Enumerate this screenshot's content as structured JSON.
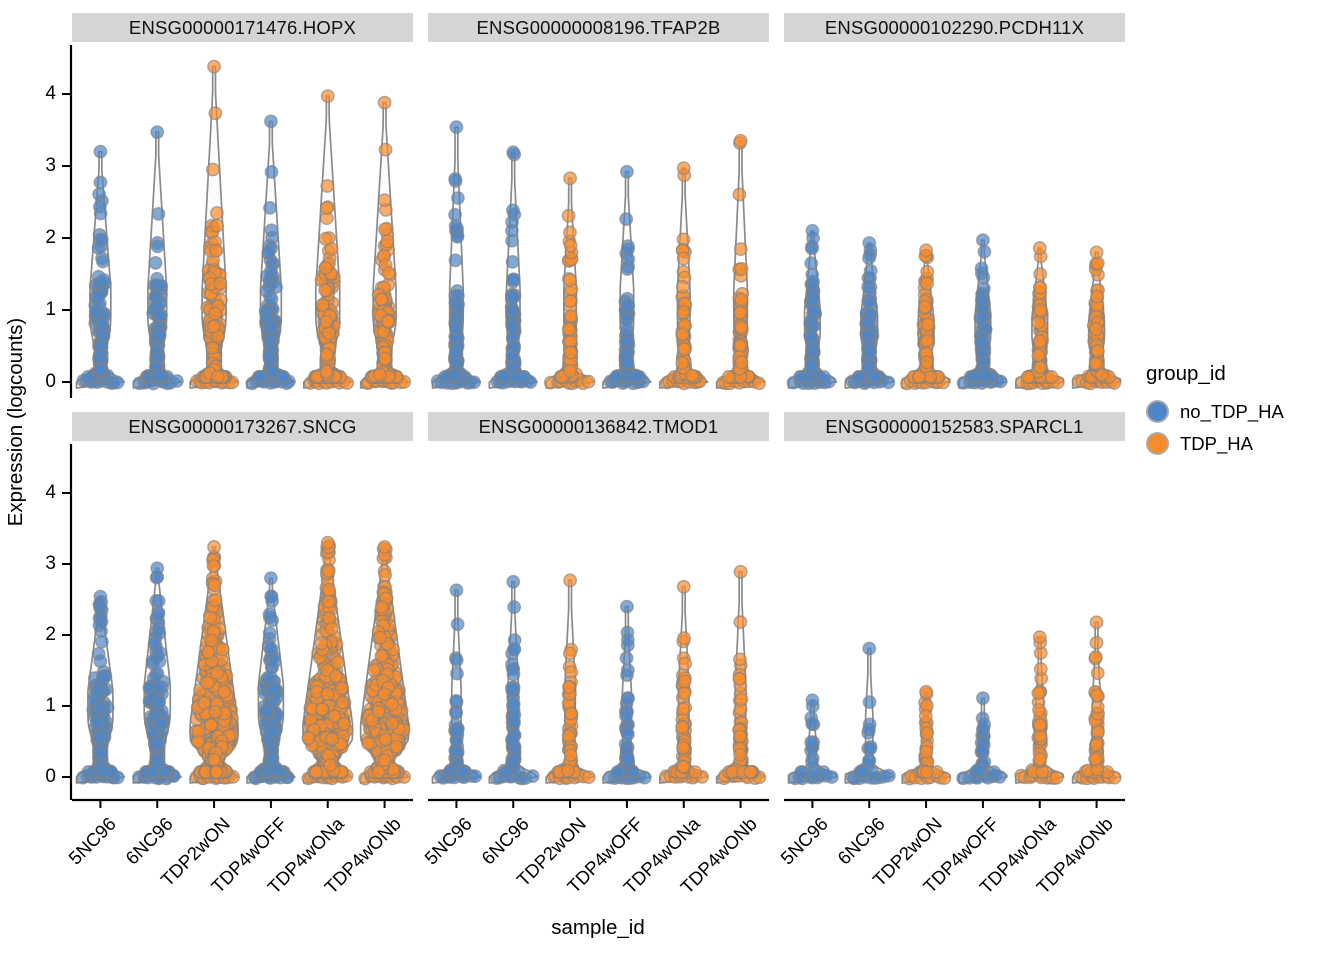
{
  "axes": {
    "y": {
      "label": "Expression (logcounts)",
      "ticks": [
        0,
        1,
        2,
        3,
        4
      ]
    },
    "x": {
      "label": "sample_id",
      "categories": [
        "5NC96",
        "6NC96",
        "TDP2wON",
        "TDP4wOFF",
        "TDP4wONa",
        "TDP4wONb"
      ]
    }
  },
  "legend": {
    "title": "group_id",
    "items": [
      {
        "label": "no_TDP_HA",
        "color": "#4F86C6"
      },
      {
        "label": "TDP_HA",
        "color": "#F88B2C"
      }
    ]
  },
  "style": {
    "point_colors": {
      "no_TDP_HA": "#4F86C6",
      "TDP_HA": "#F88B2C"
    },
    "point_opacity": 0.7,
    "point_stroke": "rgba(130,130,130,0.65)",
    "violin_stroke": "#8A8A8A",
    "violin_fill": "rgba(250,250,250,0.5)",
    "strip_bg": "#D5D5D5",
    "axis_color": "#000000"
  },
  "chart_data": {
    "type": "violin",
    "subtype": "violin-with-jittered-points",
    "facet_by": "gene_id",
    "x": "sample_id",
    "y": "Expression (logcounts)",
    "ylim": [
      0,
      4.4
    ],
    "legend_position": "right",
    "grid": false,
    "groups": {
      "5NC96": "no_TDP_HA",
      "6NC96": "no_TDP_HA",
      "TDP2wON": "TDP_HA",
      "TDP4wOFF": "no_TDP_HA",
      "TDP4wONa": "TDP_HA",
      "TDP4wONb": "TDP_HA"
    },
    "facets": [
      {
        "title": "ENSG00000171476.HOPX",
        "violins": [
          {
            "sample": "5NC96",
            "group": "no_TDP_HA",
            "max": 3.2,
            "n": 120,
            "zeros": 10,
            "bulge": 0.4
          },
          {
            "sample": "6NC96",
            "group": "no_TDP_HA",
            "max": 3.47,
            "n": 110,
            "zeros": 10,
            "bulge": 0.36
          },
          {
            "sample": "TDP2wON",
            "group": "TDP_HA",
            "max": 4.38,
            "n": 210,
            "zeros": 11,
            "bulge": 0.46
          },
          {
            "sample": "TDP4wOFF",
            "group": "no_TDP_HA",
            "max": 3.62,
            "n": 130,
            "zeros": 10,
            "bulge": 0.4
          },
          {
            "sample": "TDP4wONa",
            "group": "TDP_HA",
            "max": 3.97,
            "n": 205,
            "zeros": 11,
            "bulge": 0.46
          },
          {
            "sample": "TDP4wONb",
            "group": "TDP_HA",
            "max": 3.88,
            "n": 195,
            "zeros": 11,
            "bulge": 0.44
          }
        ]
      },
      {
        "title": "ENSG00000008196.TFAP2B",
        "violins": [
          {
            "sample": "5NC96",
            "group": "no_TDP_HA",
            "max": 3.54,
            "n": 85,
            "zeros": 10,
            "bulge": 0.26
          },
          {
            "sample": "6NC96",
            "group": "no_TDP_HA",
            "max": 3.19,
            "n": 75,
            "zeros": 10,
            "bulge": 0.26
          },
          {
            "sample": "TDP2wON",
            "group": "TDP_HA",
            "max": 2.83,
            "n": 70,
            "zeros": 10,
            "bulge": 0.24
          },
          {
            "sample": "TDP4wOFF",
            "group": "no_TDP_HA",
            "max": 2.92,
            "n": 80,
            "zeros": 10,
            "bulge": 0.26
          },
          {
            "sample": "TDP4wONa",
            "group": "TDP_HA",
            "max": 2.97,
            "n": 70,
            "zeros": 10,
            "bulge": 0.24
          },
          {
            "sample": "TDP4wONb",
            "group": "TDP_HA",
            "max": 3.35,
            "n": 85,
            "zeros": 10,
            "bulge": 0.26
          }
        ]
      },
      {
        "title": "ENSG00000102290.PCDH11X",
        "violins": [
          {
            "sample": "5NC96",
            "group": "no_TDP_HA",
            "max": 2.1,
            "n": 95,
            "zeros": 10,
            "bulge": 0.3
          },
          {
            "sample": "6NC96",
            "group": "no_TDP_HA",
            "max": 1.93,
            "n": 90,
            "zeros": 10,
            "bulge": 0.32
          },
          {
            "sample": "TDP2wON",
            "group": "TDP_HA",
            "max": 1.83,
            "n": 90,
            "zeros": 10,
            "bulge": 0.3
          },
          {
            "sample": "TDP4wOFF",
            "group": "no_TDP_HA",
            "max": 1.97,
            "n": 95,
            "zeros": 10,
            "bulge": 0.3
          },
          {
            "sample": "TDP4wONa",
            "group": "TDP_HA",
            "max": 1.86,
            "n": 90,
            "zeros": 10,
            "bulge": 0.3
          },
          {
            "sample": "TDP4wONb",
            "group": "TDP_HA",
            "max": 1.8,
            "n": 85,
            "zeros": 10,
            "bulge": 0.3
          }
        ]
      },
      {
        "title": "ENSG00000173267.SNCG",
        "violins": [
          {
            "sample": "5NC96",
            "group": "no_TDP_HA",
            "max": 2.54,
            "n": 170,
            "zeros": 11,
            "bulge": 0.48
          },
          {
            "sample": "6NC96",
            "group": "no_TDP_HA",
            "max": 2.94,
            "n": 210,
            "zeros": 11,
            "bulge": 0.5
          },
          {
            "sample": "TDP2wON",
            "group": "TDP_HA",
            "max": 3.24,
            "n": 400,
            "zeros": 13,
            "bulge": 0.92
          },
          {
            "sample": "TDP4wOFF",
            "group": "no_TDP_HA",
            "max": 2.8,
            "n": 190,
            "zeros": 11,
            "bulge": 0.48
          },
          {
            "sample": "TDP4wONa",
            "group": "TDP_HA",
            "max": 3.3,
            "n": 420,
            "zeros": 13,
            "bulge": 0.95
          },
          {
            "sample": "TDP4wONb",
            "group": "TDP_HA",
            "max": 3.24,
            "n": 400,
            "zeros": 13,
            "bulge": 0.92
          }
        ]
      },
      {
        "title": "ENSG00000136842.TMOD1",
        "violins": [
          {
            "sample": "5NC96",
            "group": "no_TDP_HA",
            "max": 2.63,
            "n": 45,
            "zeros": 9,
            "bulge": 0.18
          },
          {
            "sample": "6NC96",
            "group": "no_TDP_HA",
            "max": 2.75,
            "n": 55,
            "zeros": 9,
            "bulge": 0.2
          },
          {
            "sample": "TDP2wON",
            "group": "TDP_HA",
            "max": 2.77,
            "n": 55,
            "zeros": 9,
            "bulge": 0.2
          },
          {
            "sample": "TDP4wOFF",
            "group": "no_TDP_HA",
            "max": 2.4,
            "n": 45,
            "zeros": 9,
            "bulge": 0.18
          },
          {
            "sample": "TDP4wONa",
            "group": "TDP_HA",
            "max": 2.68,
            "n": 60,
            "zeros": 9,
            "bulge": 0.2
          },
          {
            "sample": "TDP4wONb",
            "group": "TDP_HA",
            "max": 2.89,
            "n": 65,
            "zeros": 9,
            "bulge": 0.2
          }
        ]
      },
      {
        "title": "ENSG00000152583.SPARCL1",
        "violins": [
          {
            "sample": "5NC96",
            "group": "no_TDP_HA",
            "max": 1.08,
            "n": 16,
            "zeros": 9,
            "bulge": 0.14
          },
          {
            "sample": "6NC96",
            "group": "no_TDP_HA",
            "max": 1.81,
            "n": 14,
            "zeros": 9,
            "bulge": 0.14
          },
          {
            "sample": "TDP2wON",
            "group": "TDP_HA",
            "max": 1.2,
            "n": 28,
            "zeros": 9,
            "bulge": 0.15
          },
          {
            "sample": "TDP4wOFF",
            "group": "no_TDP_HA",
            "max": 1.11,
            "n": 22,
            "zeros": 9,
            "bulge": 0.14
          },
          {
            "sample": "TDP4wONa",
            "group": "TDP_HA",
            "max": 1.97,
            "n": 40,
            "zeros": 10,
            "bulge": 0.16
          },
          {
            "sample": "TDP4wONb",
            "group": "TDP_HA",
            "max": 2.18,
            "n": 45,
            "zeros": 10,
            "bulge": 0.16
          }
        ]
      }
    ]
  }
}
